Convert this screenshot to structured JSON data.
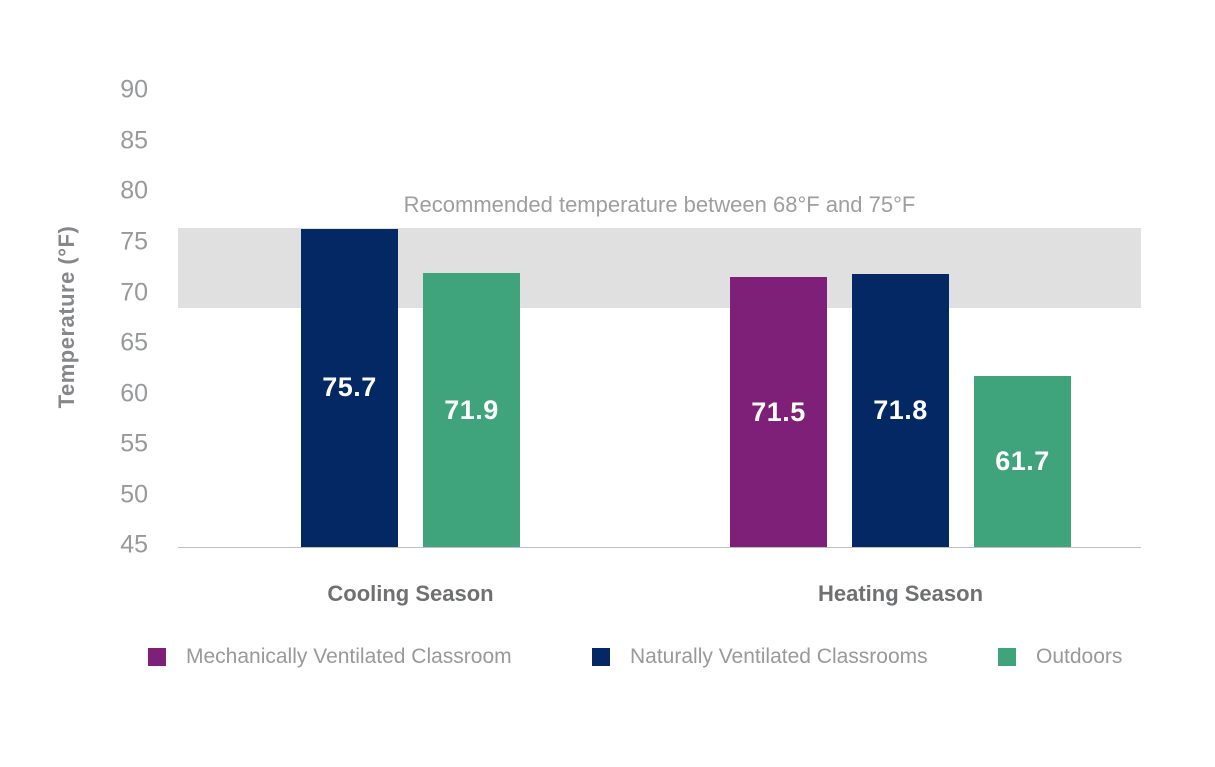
{
  "chart_data": {
    "type": "bar",
    "title": "",
    "ylabel": "Temperature (°F)",
    "xlabel": "",
    "annotation": "Recommended temperature between 68°F and 75°F",
    "y_axis": {
      "min": 45,
      "max": 90,
      "step": 5,
      "ticks": [
        90,
        85,
        80,
        75,
        70,
        65,
        60,
        55,
        50,
        45
      ]
    },
    "recommended_band": {
      "low_f": 68,
      "high_f": 75,
      "color": "#E0E0E1",
      "draw_low_f": 68.5,
      "draw_high_f": 76.35
    },
    "categories": [
      "Cooling Season",
      "Heating Season"
    ],
    "series": [
      {
        "name": "Mechanically Ventilated Classroom",
        "color": "#7E2077",
        "values": [
          null,
          71.5
        ]
      },
      {
        "name": "Naturally Ventilated Classrooms",
        "color": "#032863",
        "values": [
          75.7,
          71.8
        ]
      },
      {
        "name": "Outdoors",
        "color": "#3FA47B",
        "values": [
          71.9,
          61.7
        ]
      }
    ],
    "draw_overrides": [
      {
        "series": "Naturally Ventilated Classrooms",
        "category": "Cooling Season",
        "draw_value": 76.3
      }
    ],
    "value_label_color": "#FFFFFF",
    "legend_position": "bottom",
    "grid": false,
    "ylim": [
      45,
      90
    ]
  }
}
